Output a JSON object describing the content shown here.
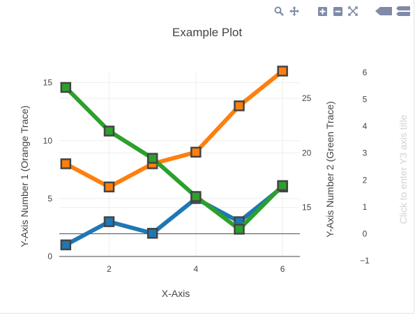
{
  "toolbar": {
    "buttons": [
      {
        "icon": "zoom-icon"
      },
      {
        "icon": "pan-icon"
      },
      {
        "icon": "zoom-in-icon"
      },
      {
        "icon": "zoom-out-icon"
      },
      {
        "icon": "autoscale-icon"
      },
      {
        "icon": "hover-closest-icon"
      },
      {
        "icon": "hover-compare-icon"
      }
    ],
    "icon_color": "#7f8ba7"
  },
  "chart_data": {
    "type": "line",
    "title": "Example Plot",
    "xlabel": "X-Axis",
    "x": [
      1,
      2,
      3,
      4,
      5,
      6
    ],
    "xlim": [
      0.85,
      6.4
    ],
    "xticks": [
      2,
      4,
      6
    ],
    "axes": {
      "y1": {
        "label": "Y-Axis Number 1 (Orange Trace)",
        "ylim": [
          0,
          16
        ],
        "ticks": [
          0,
          5,
          10,
          15
        ],
        "side": "left"
      },
      "y2": {
        "label": "Y-Axis Number 2 (Green Trace)",
        "ylim": [
          10.5,
          27.5
        ],
        "ticks": [
          15,
          20,
          25
        ],
        "side": "right"
      },
      "y3": {
        "label": "Click to enter Y3 axis title",
        "ylim": [
          -1,
          6
        ],
        "ticks": [
          -1,
          0,
          1,
          2,
          3,
          4,
          5,
          6
        ],
        "side": "right"
      }
    },
    "grid": true,
    "series": [
      {
        "axis": "y1",
        "color": "#1f77b4",
        "values": [
          1,
          3,
          2,
          5,
          3,
          6
        ]
      },
      {
        "axis": "y1",
        "color": "#ff7f0e",
        "values": [
          8,
          6,
          8,
          9,
          13,
          16
        ]
      },
      {
        "axis": "y2",
        "color": "#2ca02c",
        "values": [
          26,
          22,
          19.5,
          16,
          13,
          17
        ]
      }
    ]
  }
}
